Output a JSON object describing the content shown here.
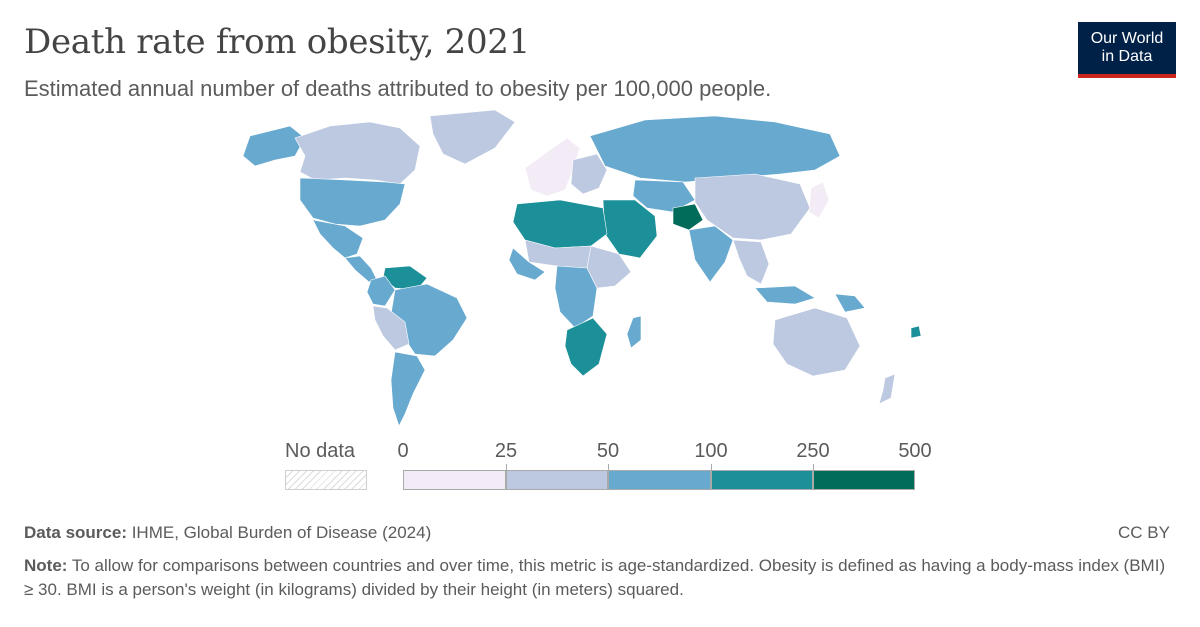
{
  "header": {
    "title": "Death rate from obesity, 2021",
    "subtitle": "Estimated annual number of deaths attributed to obesity per 100,000 people."
  },
  "logo": {
    "line1": "Our World",
    "line2": "in Data"
  },
  "legend": {
    "no_data_label": "No data",
    "ticks": [
      "0",
      "25",
      "50",
      "100",
      "250",
      "500"
    ],
    "bins": [
      {
        "from": 0,
        "to": 25,
        "color": "#f3ecf6"
      },
      {
        "from": 25,
        "to": 50,
        "color": "#bdc9e1"
      },
      {
        "from": 50,
        "to": 100,
        "color": "#67a9cf"
      },
      {
        "from": 100,
        "to": 250,
        "color": "#1c9099"
      },
      {
        "from": 250,
        "to": 500,
        "color": "#016c59"
      }
    ]
  },
  "footer": {
    "source_label": "Data source:",
    "source_text": " IHME, Global Burden of Disease (2024)",
    "license": "CC BY",
    "note_label": "Note:",
    "note_text": " To allow for comparisons between countries and over time, this metric is age-standardized. Obesity is defined as having a body-mass index (BMI) ≥ 30. BMI is a person's weight (in kilograms) divided by their height (in meters) squared."
  },
  "map_regions": [
    {
      "name": "canada",
      "bin": 1
    },
    {
      "name": "alaska",
      "bin": 2
    },
    {
      "name": "usa",
      "bin": 2
    },
    {
      "name": "mexico",
      "bin": 2
    },
    {
      "name": "central-america",
      "bin": 2
    },
    {
      "name": "greenland",
      "bin": 1
    },
    {
      "name": "south-america-north",
      "bin": 2
    },
    {
      "name": "venezuela-guyana",
      "bin": 3
    },
    {
      "name": "brazil",
      "bin": 2
    },
    {
      "name": "peru-bolivia",
      "bin": 1
    },
    {
      "name": "argentina-chile",
      "bin": 2
    },
    {
      "name": "western-europe",
      "bin": 0
    },
    {
      "name": "eastern-europe",
      "bin": 1
    },
    {
      "name": "russia",
      "bin": 2
    },
    {
      "name": "central-asia",
      "bin": 2
    },
    {
      "name": "north-africa",
      "bin": 3
    },
    {
      "name": "sahel",
      "bin": 1
    },
    {
      "name": "west-africa",
      "bin": 2
    },
    {
      "name": "central-africa",
      "bin": 2
    },
    {
      "name": "east-africa",
      "bin": 1
    },
    {
      "name": "southern-africa",
      "bin": 3
    },
    {
      "name": "madagascar",
      "bin": 2
    },
    {
      "name": "middle-east",
      "bin": 3
    },
    {
      "name": "afghanistan",
      "bin": 4
    },
    {
      "name": "south-asia",
      "bin": 2
    },
    {
      "name": "china-mongolia",
      "bin": 1
    },
    {
      "name": "southeast-asia",
      "bin": 1
    },
    {
      "name": "japan",
      "bin": 0
    },
    {
      "name": "indonesia",
      "bin": 2
    },
    {
      "name": "papua-new-guinea",
      "bin": 2
    },
    {
      "name": "australia",
      "bin": 1
    },
    {
      "name": "new-zealand",
      "bin": 1
    },
    {
      "name": "pacific-islands",
      "bin": 3
    }
  ]
}
